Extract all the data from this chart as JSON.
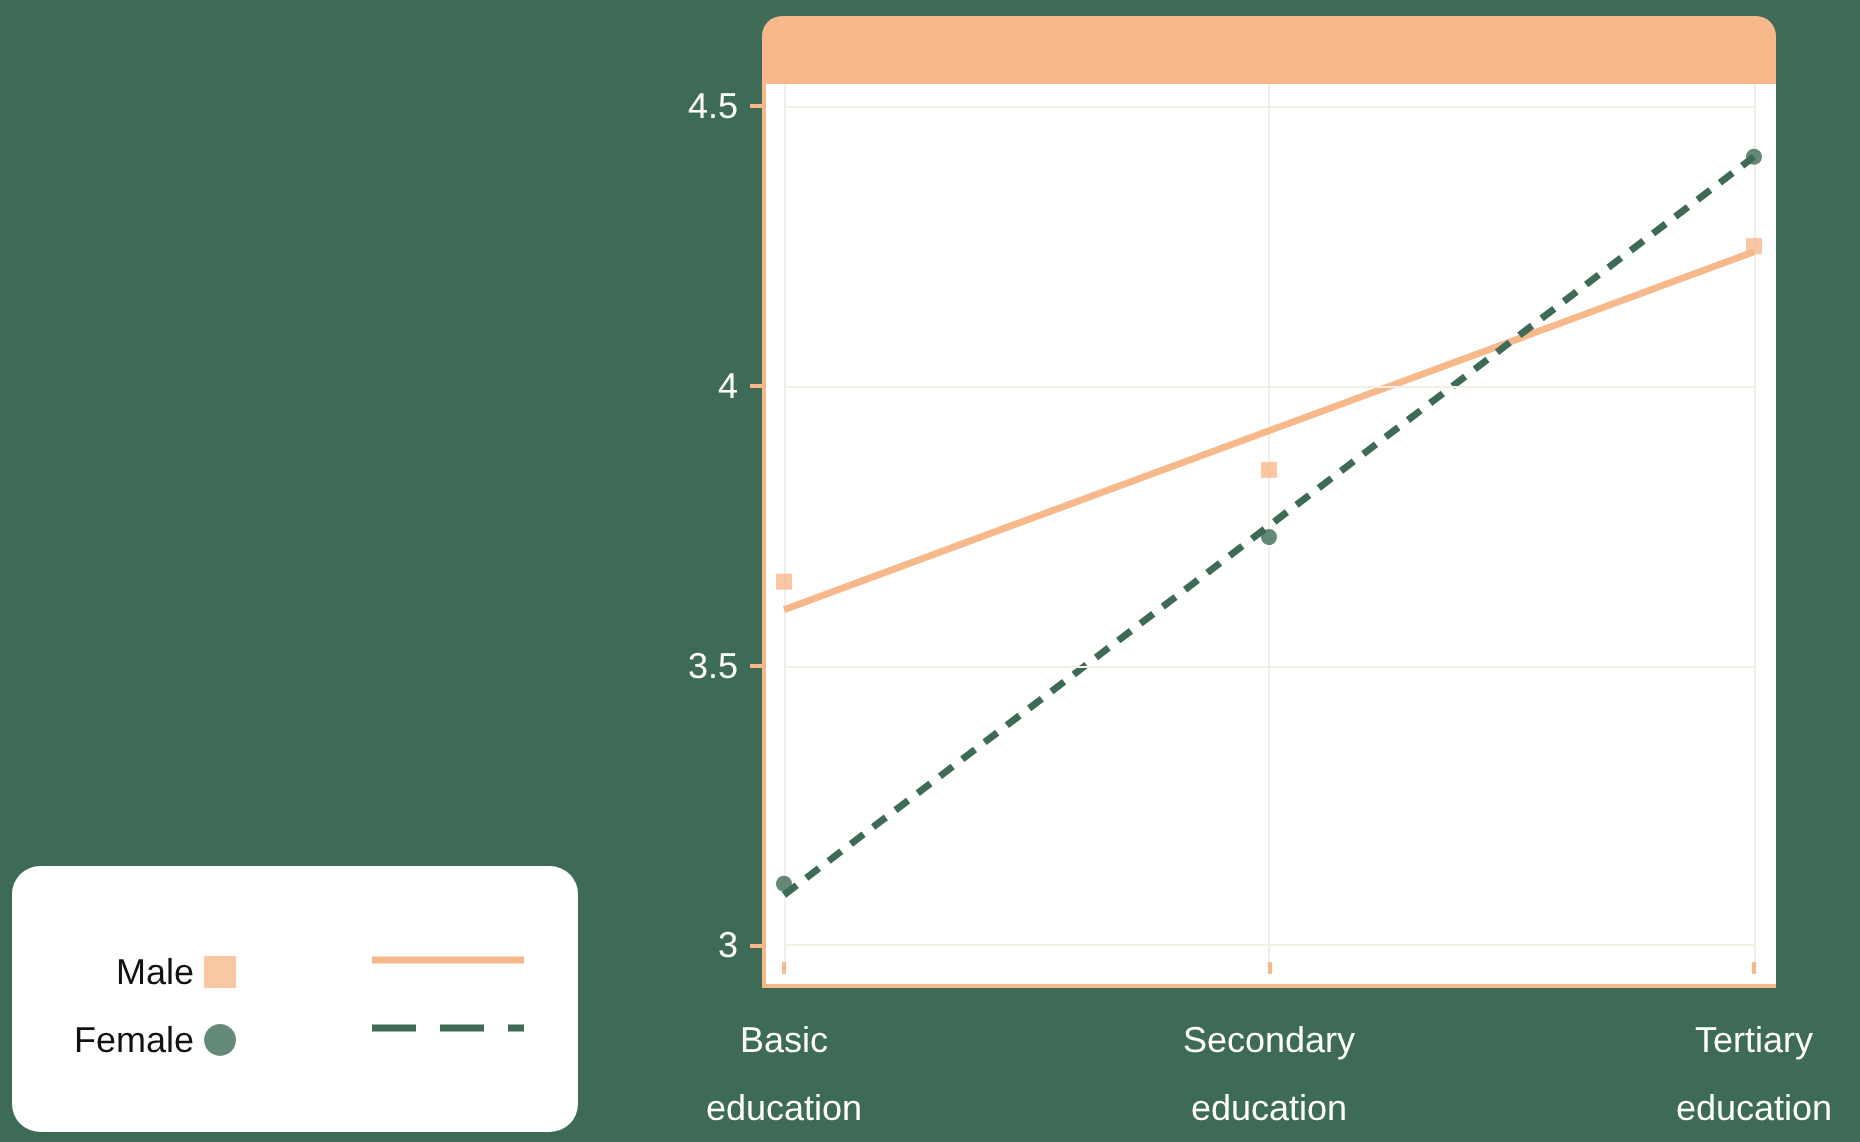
{
  "chart_data": {
    "type": "scatter",
    "categories": [
      "Basic education",
      "Secondary education",
      "Tertiary education"
    ],
    "series": [
      {
        "name": "Male",
        "marker": "square",
        "color": "#f7b98c",
        "values": [
          3.65,
          3.85,
          4.25
        ]
      },
      {
        "type": "line",
        "marker": "none",
        "line_style": "solid",
        "color": "#f7b98c",
        "x": [
          "Basic education",
          "Tertiary education"
        ],
        "values": [
          3.6,
          4.24
        ]
      },
      {
        "name": "Female",
        "marker": "circle",
        "color": "#3d6b55",
        "values": [
          3.11,
          3.73,
          4.41
        ]
      },
      {
        "type": "line",
        "marker": "none",
        "line_style": "dashed",
        "color": "#3d6b55",
        "x": [
          "Basic education",
          "Tertiary education"
        ],
        "values": [
          3.09,
          4.41
        ]
      }
    ],
    "ylim": [
      2.97,
      4.54
    ],
    "yticks": [
      3,
      3.5,
      4,
      4.5
    ],
    "grid": true,
    "legend": "bottom left"
  }
}
